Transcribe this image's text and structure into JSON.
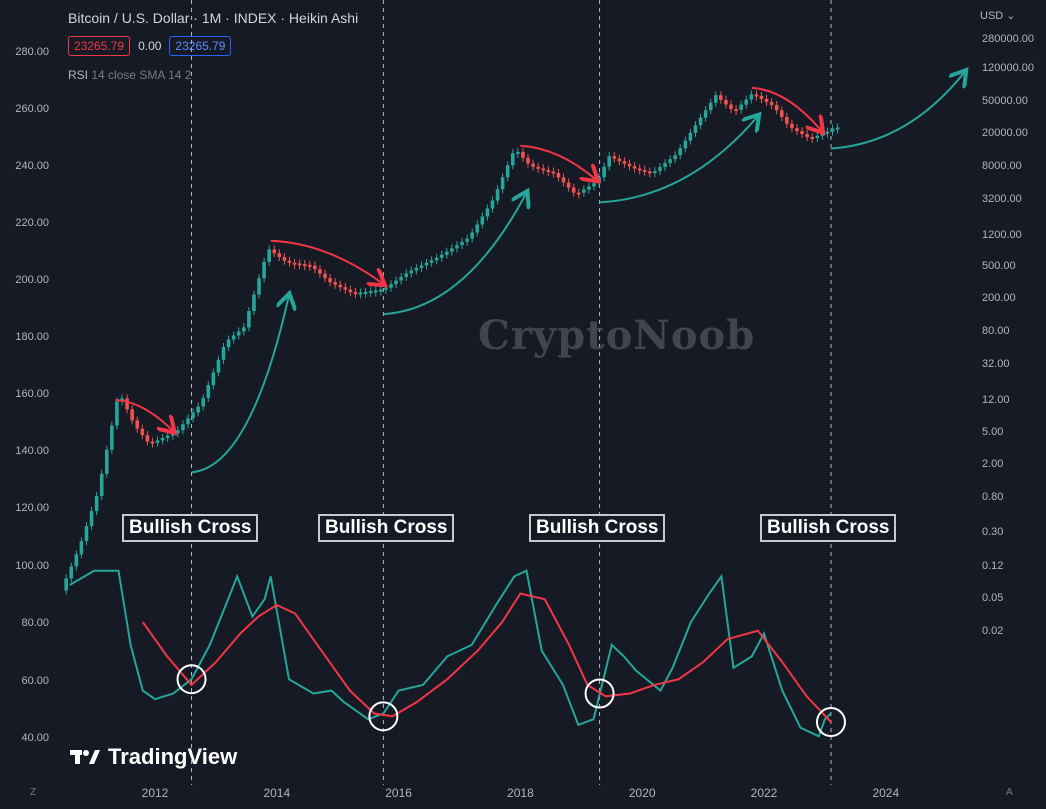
{
  "header": {
    "title": "Bitcoin / U.S. Dollar · 1M · INDEX · Heikin Ashi",
    "price_red": "23265.79",
    "change": "0.00",
    "price_blue": "23265.79",
    "rsi_label": "RSI",
    "rsi_params": "14 close SMA 14 2",
    "currency": "USD"
  },
  "watermark": "CryptoNoob",
  "brand": "TradingView",
  "corners": {
    "bottom_left": "Z",
    "bottom_right": "A"
  },
  "colors": {
    "up": "#26a69a",
    "down": "#ef5350",
    "rsi": "#26a69a",
    "rsi_ma": "#f23645",
    "background": "#161a25",
    "text": "#b2b5be"
  },
  "chart_data": {
    "type": "line",
    "title": "Bitcoin / U.S. Dollar · 1M · INDEX · Heikin Ashi",
    "x_ticks": [
      "2012",
      "2014",
      "2016",
      "2018",
      "2020",
      "2022",
      "2024"
    ],
    "left_axis_ticks": [
      "280.00",
      "260.00",
      "240.00",
      "220.00",
      "200.00",
      "180.00",
      "160.00",
      "140.00",
      "120.00",
      "100.00",
      "80.00",
      "60.00",
      "40.00"
    ],
    "right_axis_ticks": [
      "280000.00",
      "120000.00",
      "50000.00",
      "20000.00",
      "8000.00",
      "3200.00",
      "1200.00",
      "500.00",
      "200.00",
      "80.00",
      "32.00",
      "12.00",
      "5.00",
      "2.00",
      "0.80",
      "0.30",
      "0.12",
      "0.05",
      "0.02"
    ],
    "price_scale": "log",
    "price_series": {
      "name": "BTCUSD Heikin Ashi (approx.)",
      "points": [
        [
          2010.5,
          0.06
        ],
        [
          2010.8,
          0.2
        ],
        [
          2011.1,
          0.9
        ],
        [
          2011.45,
          15
        ],
        [
          2011.7,
          6
        ],
        [
          2011.95,
          3.5
        ],
        [
          2012.4,
          5
        ],
        [
          2012.8,
          11
        ],
        [
          2013.2,
          60
        ],
        [
          2013.5,
          90
        ],
        [
          2013.9,
          800
        ],
        [
          2014.2,
          550
        ],
        [
          2014.6,
          500
        ],
        [
          2014.9,
          320
        ],
        [
          2015.3,
          230
        ],
        [
          2015.8,
          260
        ],
        [
          2016.2,
          420
        ],
        [
          2016.7,
          640
        ],
        [
          2017.2,
          1100
        ],
        [
          2017.6,
          3200
        ],
        [
          2017.95,
          13000
        ],
        [
          2018.2,
          8000
        ],
        [
          2018.6,
          6500
        ],
        [
          2018.95,
          3600
        ],
        [
          2019.3,
          5200
        ],
        [
          2019.5,
          10500
        ],
        [
          2019.9,
          7500
        ],
        [
          2020.2,
          6500
        ],
        [
          2020.6,
          11000
        ],
        [
          2020.95,
          27000
        ],
        [
          2021.25,
          57000
        ],
        [
          2021.55,
          36000
        ],
        [
          2021.85,
          60000
        ],
        [
          2022.2,
          42000
        ],
        [
          2022.45,
          24000
        ],
        [
          2022.8,
          17000
        ],
        [
          2023.1,
          21000
        ],
        [
          2023.2,
          23265.79
        ]
      ]
    },
    "rsi_series": {
      "name": "RSI 14",
      "points": [
        [
          2010.6,
          93
        ],
        [
          2011.0,
          98
        ],
        [
          2011.4,
          98
        ],
        [
          2011.6,
          72
        ],
        [
          2011.8,
          56
        ],
        [
          2012.0,
          53
        ],
        [
          2012.3,
          55
        ],
        [
          2012.6,
          60
        ],
        [
          2012.9,
          72
        ],
        [
          2013.2,
          88
        ],
        [
          2013.35,
          96
        ],
        [
          2013.6,
          82
        ],
        [
          2013.8,
          88
        ],
        [
          2013.9,
          96
        ],
        [
          2014.2,
          60
        ],
        [
          2014.6,
          55
        ],
        [
          2014.9,
          56
        ],
        [
          2015.1,
          52
        ],
        [
          2015.5,
          46
        ],
        [
          2015.75,
          48
        ],
        [
          2016.0,
          56
        ],
        [
          2016.4,
          58
        ],
        [
          2016.8,
          68
        ],
        [
          2017.2,
          72
        ],
        [
          2017.6,
          86
        ],
        [
          2017.9,
          96
        ],
        [
          2018.1,
          98
        ],
        [
          2018.35,
          70
        ],
        [
          2018.7,
          58
        ],
        [
          2018.95,
          44
        ],
        [
          2019.2,
          46
        ],
        [
          2019.5,
          72
        ],
        [
          2019.7,
          68
        ],
        [
          2019.9,
          63
        ],
        [
          2020.3,
          56
        ],
        [
          2020.5,
          64
        ],
        [
          2020.8,
          80
        ],
        [
          2021.1,
          90
        ],
        [
          2021.3,
          96
        ],
        [
          2021.5,
          64
        ],
        [
          2021.8,
          68
        ],
        [
          2022.0,
          76
        ],
        [
          2022.3,
          56
        ],
        [
          2022.6,
          43
        ],
        [
          2022.9,
          40
        ],
        [
          2023.0,
          46
        ],
        [
          2023.1,
          48
        ]
      ]
    },
    "rsi_ma_series": {
      "name": "RSI SMA 14",
      "points": [
        [
          2011.8,
          80
        ],
        [
          2012.2,
          68
        ],
        [
          2012.6,
          58
        ],
        [
          2013.0,
          66
        ],
        [
          2013.4,
          76
        ],
        [
          2013.7,
          82
        ],
        [
          2014.0,
          86
        ],
        [
          2014.3,
          83
        ],
        [
          2014.7,
          71
        ],
        [
          2015.2,
          56
        ],
        [
          2015.6,
          48
        ],
        [
          2015.9,
          47
        ],
        [
          2016.3,
          52
        ],
        [
          2016.8,
          60
        ],
        [
          2017.3,
          70
        ],
        [
          2017.7,
          80
        ],
        [
          2018.0,
          90
        ],
        [
          2018.4,
          88
        ],
        [
          2018.8,
          72
        ],
        [
          2019.1,
          58
        ],
        [
          2019.4,
          54
        ],
        [
          2019.8,
          55
        ],
        [
          2020.2,
          58
        ],
        [
          2020.6,
          60
        ],
        [
          2021.0,
          66
        ],
        [
          2021.4,
          74
        ],
        [
          2021.9,
          77
        ],
        [
          2022.3,
          66
        ],
        [
          2022.7,
          54
        ],
        [
          2023.1,
          45
        ]
      ]
    },
    "rsi_axis": {
      "ylim": [
        30,
        100
      ]
    },
    "cross_markers": [
      {
        "label": "Bullish Cross",
        "x": 2012.6,
        "rsi": 60
      },
      {
        "label": "Bullish Cross",
        "x": 2015.75,
        "rsi": 47
      },
      {
        "label": "Bullish Cross",
        "x": 2019.3,
        "rsi": 55
      },
      {
        "label": "Bullish Cross",
        "x": 2023.1,
        "rsi": 45
      }
    ],
    "grid": false,
    "legend": "none"
  }
}
